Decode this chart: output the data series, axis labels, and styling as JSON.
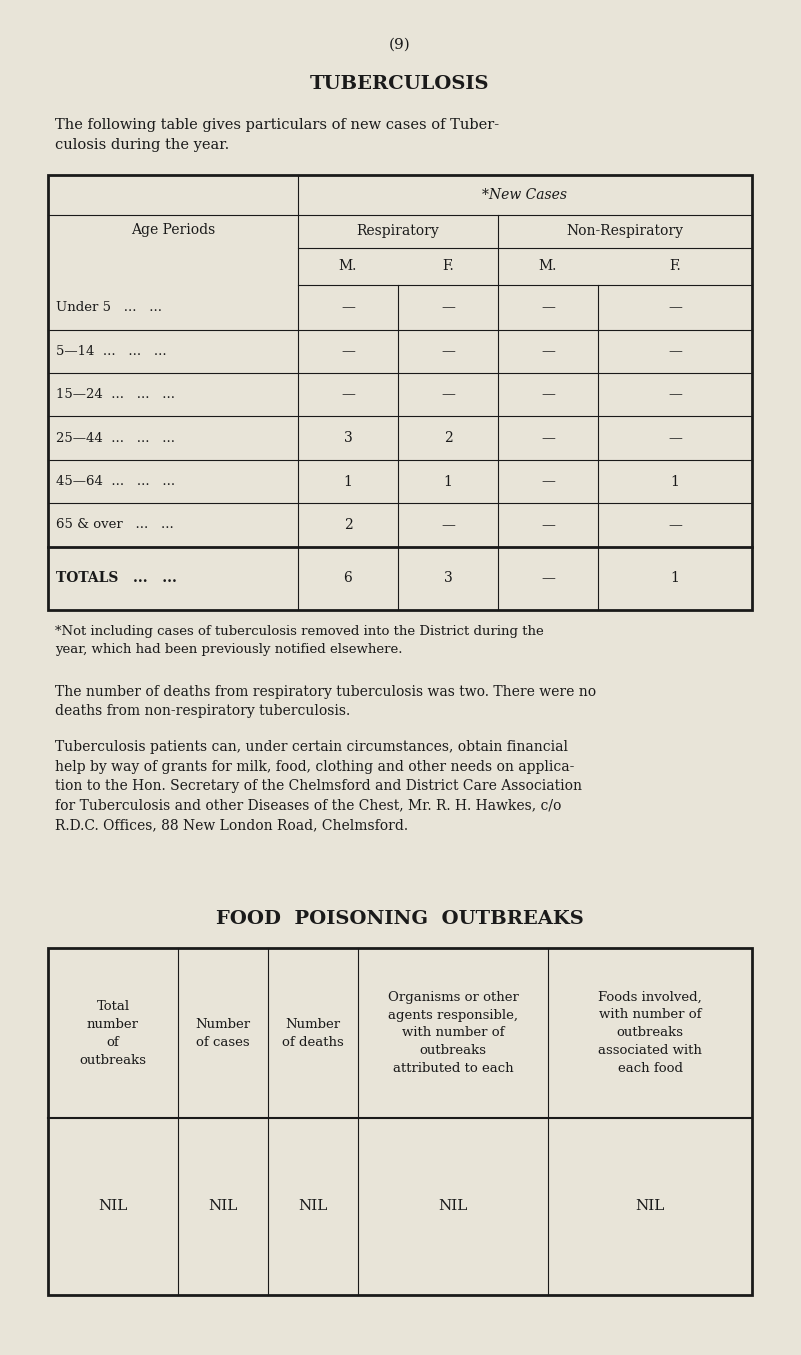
{
  "bg_color": "#e8e4d8",
  "page_number": "(9)",
  "title1": "TUBERCULOSIS",
  "intro_text": "The following table gives particulars of new cases of Tuber-\nculosis during the year.",
  "table1_header_row0": "*New Cases",
  "table1_header_row1_left": "Age Periods",
  "table1_header_row1_mid": "Respiratory",
  "table1_header_row1_right": "Non-Respiratory",
  "table1_header_row2": [
    "M.",
    "F.",
    "M.",
    "F."
  ],
  "table1_rows": [
    [
      "Under 5   ...   ...",
      "—",
      "—",
      "—",
      "—"
    ],
    [
      "5—14  ...   ...   ...",
      "—",
      "—",
      "—",
      "—"
    ],
    [
      "15—24  ...   ...   ...",
      "—",
      "—",
      "—",
      "—"
    ],
    [
      "25—44  ...   ...   ...",
      "3",
      "2",
      "—",
      "—"
    ],
    [
      "45—64  ...   ...   ...",
      "1",
      "1",
      "—",
      "1"
    ],
    [
      "65 & over   ...   ...",
      "2",
      "—",
      "—",
      "—"
    ]
  ],
  "table1_totals": [
    "TOTALS   ...   ...",
    "6",
    "3",
    "—",
    "1"
  ],
  "footnote": "*Not including cases of tuberculosis removed into the District during the\nyear, which had been previously notified elsewhere.",
  "para1": "The number of deaths from respiratory tuberculosis was two. There were no\ndeaths from non-respiratory tuberculosis.",
  "para2": "Tuberculosis patients can, under certain circumstances, obtain financial\nhelp by way of grants for milk, food, clothing and other needs on applica-\ntion to the Hon. Secretary of the Chelmsford and District Care Association\nfor Tuberculosis and other Diseases of the Chest, Mr. R. H. Hawkes, c/o\nR.D.C. Offices, 88 New London Road, Chelmsford.",
  "title2": "FOOD  POISONING  OUTBREAKS",
  "table2_headers": [
    "Total\nnumber\nof\noutbreaks",
    "Number\nof cases",
    "Number\nof deaths",
    "Organisms or other\nagents responsible,\nwith number of\noutbreaks\nattributed to each",
    "Foods involved,\nwith number of\noutbreaks\nassociated with\neach food"
  ],
  "table2_data": [
    "NIL",
    "NIL",
    "NIL",
    "NIL",
    "NIL"
  ]
}
